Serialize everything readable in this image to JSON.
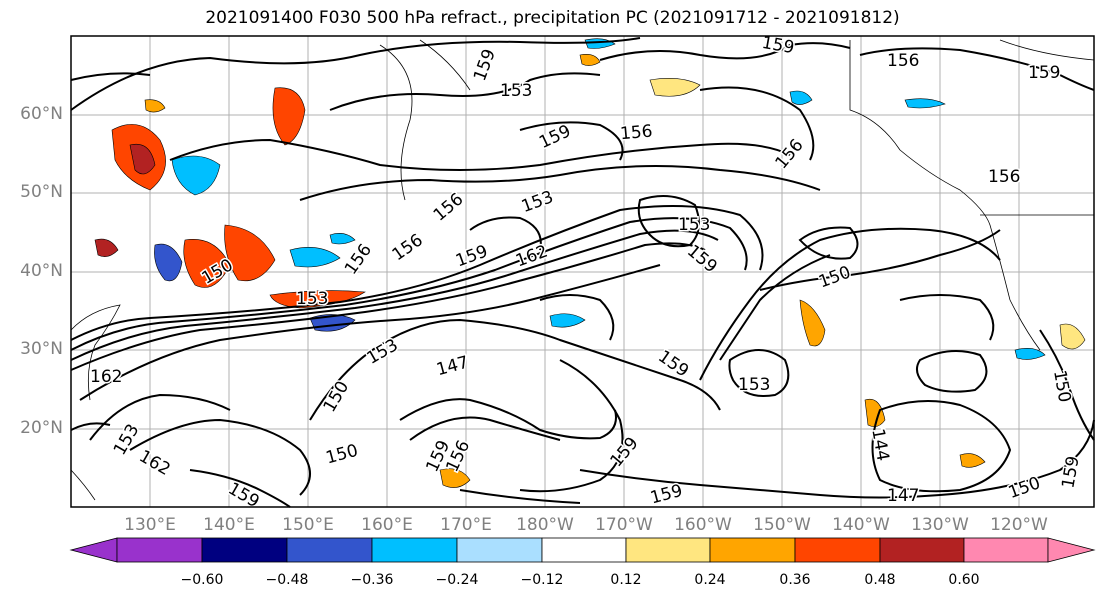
{
  "title": "2021091400 F030 500 hPa refract., precipitation PC (2021091712 - 2021091812)",
  "latitude_labels": [
    "60°N",
    "50°N",
    "40°N",
    "30°N",
    "20°N"
  ],
  "longitude_labels": [
    "130°E",
    "140°E",
    "150°E",
    "160°E",
    "170°E",
    "180°W",
    "170°W",
    "160°W",
    "150°W",
    "140°W",
    "130°W",
    "120°W"
  ],
  "contour_labels": [
    "159",
    "153",
    "159",
    "156",
    "156",
    "156",
    "153",
    "156",
    "156",
    "159",
    "162",
    "153",
    "159",
    "150",
    "150",
    "156",
    "153",
    "162",
    "153",
    "159",
    "147",
    "150",
    "153",
    "159",
    "144",
    "147",
    "150",
    "159",
    "156",
    "159",
    "150",
    "156",
    "162",
    "159",
    "150"
  ],
  "colorbar": {
    "ticks": [
      "−0.60",
      "−0.48",
      "−0.36",
      "−0.24",
      "−0.12",
      "0.12",
      "0.24",
      "0.36",
      "0.48",
      "0.60"
    ],
    "colors": [
      "#9932cc",
      "#000080",
      "#3355cc",
      "#00bfff",
      "#aadfff",
      "#ffffff",
      "#ffe680",
      "#ffa500",
      "#ff4500",
      "#b22222",
      "#ff88b0"
    ]
  }
}
